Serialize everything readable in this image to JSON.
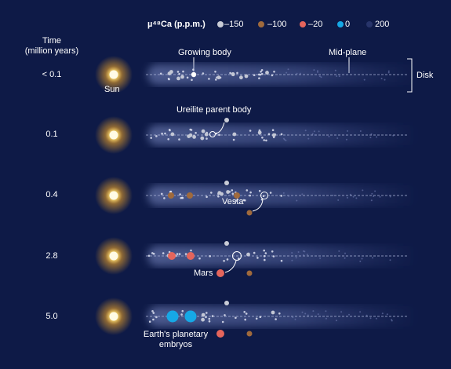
{
  "header": {
    "time_label_line1": "Time",
    "time_label_line2": "(million years)"
  },
  "legend": {
    "title": "µ⁴⁸Ca (p.p.m.)",
    "items": [
      {
        "label": "–150",
        "color": "#c9ccd6"
      },
      {
        "label": "–100",
        "color": "#a06a3c"
      },
      {
        "label": "–20",
        "color": "#e5655c"
      },
      {
        "label": "0",
        "color": "#16a8e6"
      },
      {
        "label": "200",
        "color": "#27346a"
      }
    ]
  },
  "annotations": {
    "sun": "Sun",
    "growing_body": "Growing body",
    "mid_plane": "Mid-plane",
    "disk": "Disk",
    "ureilite": "Ureilite parent body",
    "vesta": "Vesta",
    "mars": "Mars",
    "earth_line1": "Earth's planetary",
    "earth_line2": "embryos"
  },
  "rows": [
    {
      "time": "< 0.1"
    },
    {
      "time": "0.1"
    },
    {
      "time": "0.4"
    },
    {
      "time": "2.8"
    },
    {
      "time": "5.0"
    }
  ],
  "colors": {
    "background": "#0e1a47",
    "disk": "#6a7bb8",
    "midplane": "#9aa6cf",
    "sun_core": "#fff7c8",
    "sun_glow": "#f6b026"
  }
}
